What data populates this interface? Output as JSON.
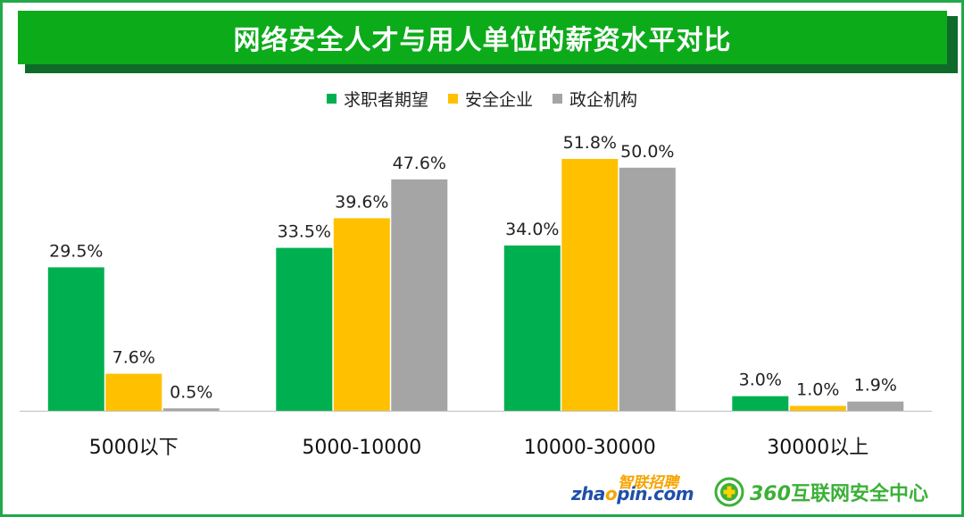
{
  "title": "网络安全人才与用人单位的薪资水平对比",
  "colors": {
    "frame": "#22a84a",
    "title_bg": "#0cab1a",
    "title_shadow": "#0f6b2a",
    "series": [
      "#00b050",
      "#ffc000",
      "#a5a5a5"
    ]
  },
  "chart_data": {
    "type": "bar",
    "title": "网络安全人才与用人单位的薪资水平对比",
    "categories": [
      "5000以下",
      "5000-10000",
      "10000-30000",
      "30000以上"
    ],
    "series": [
      {
        "name": "求职者期望",
        "values": [
          29.5,
          33.5,
          34.0,
          3.0
        ],
        "labels": [
          "29.5%",
          "33.5%",
          "34.0%",
          "3.0%"
        ]
      },
      {
        "name": "安全企业",
        "values": [
          7.6,
          39.6,
          51.8,
          1.0
        ],
        "labels": [
          "7.6%",
          "39.6%",
          "51.8%",
          "1.0%"
        ]
      },
      {
        "name": "政企机构",
        "values": [
          0.5,
          47.6,
          50.0,
          1.9
        ],
        "labels": [
          "0.5%",
          "47.6%",
          "50.0%",
          "1.9%"
        ]
      }
    ],
    "ylim": [
      0,
      55
    ],
    "legend": "top",
    "grid": false,
    "y_axis_visible": false
  },
  "logos": {
    "zhaopin_cn": "智联招聘",
    "zhaopin_en_1": "zha",
    "zhaopin_en_o": "o",
    "zhaopin_en_2": "pin.com",
    "brand_360_num": "360",
    "brand_360_text": "互联网安全中心"
  }
}
